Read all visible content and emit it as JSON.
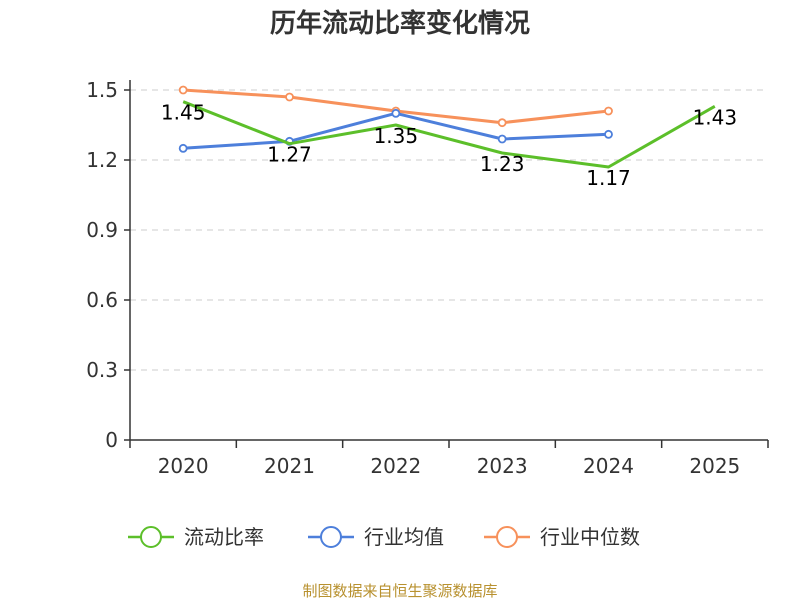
{
  "colors": {
    "current_ratio": "#5cbf2a",
    "industry_avg": "#4d7fdb",
    "industry_median": "#f7915b",
    "grid": "#cccccc",
    "axis": "#333333",
    "text": "#333333",
    "source": "#b8912f"
  },
  "source": "制图数据来自恒生聚源数据库",
  "chart_data": {
    "type": "line",
    "title": "历年流动比率变化情况",
    "xlabel": "",
    "ylabel": "",
    "categories": [
      "2020",
      "2021",
      "2022",
      "2023",
      "2024",
      "2025"
    ],
    "ylim": [
      0,
      1.5
    ],
    "yticks": [
      "0",
      "0.3",
      "0.6",
      "0.9",
      "1.2",
      "1.5"
    ],
    "grid": true,
    "legend_position": "bottom",
    "series": [
      {
        "name": "流动比率",
        "color_key": "current_ratio",
        "values": [
          1.45,
          1.27,
          1.35,
          1.23,
          1.17,
          1.43
        ],
        "labels": [
          "1.45",
          "1.27",
          "1.35",
          "1.23",
          "1.17",
          "1.43"
        ],
        "show_markers": false
      },
      {
        "name": "行业均值",
        "color_key": "industry_avg",
        "values": [
          1.25,
          1.28,
          1.4,
          1.29,
          1.31,
          null
        ],
        "show_markers": true
      },
      {
        "name": "行业中位数",
        "color_key": "industry_median",
        "values": [
          1.5,
          1.47,
          1.41,
          1.36,
          1.41,
          null
        ],
        "show_markers": true
      }
    ]
  }
}
